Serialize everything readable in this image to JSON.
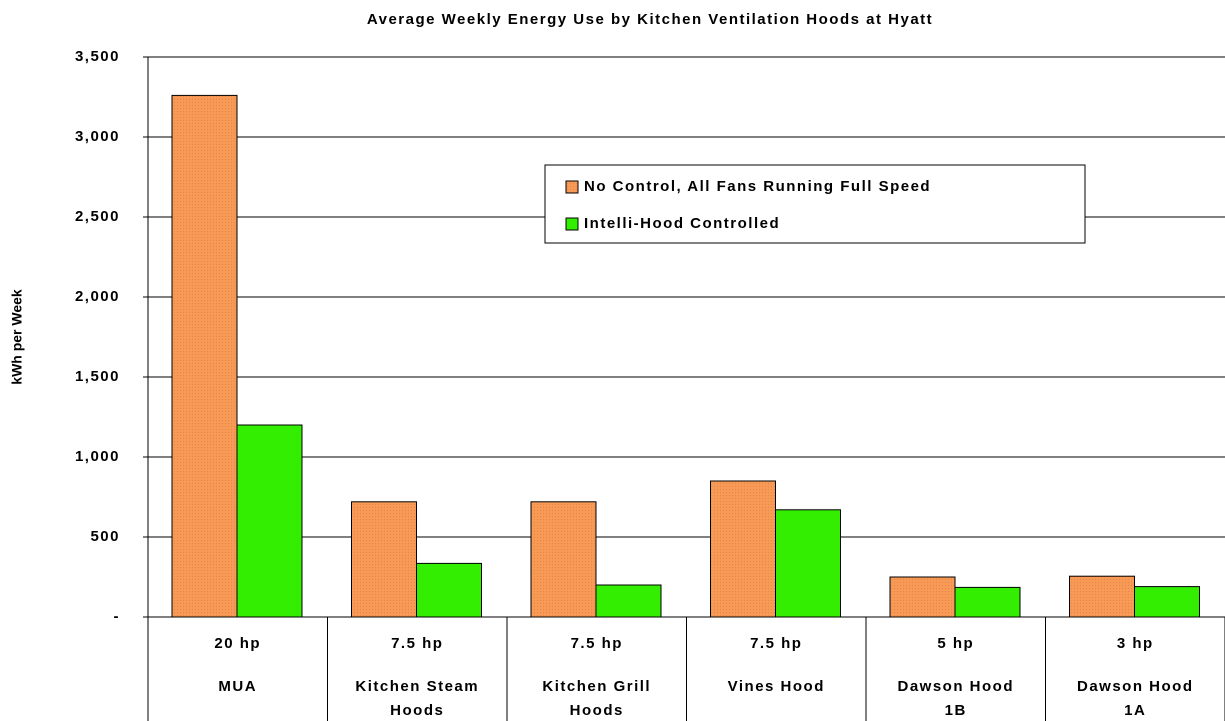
{
  "chart_data": {
    "type": "bar",
    "title": "Average Weekly Energy Use by Kitchen Ventilation Hoods at Hyatt",
    "y_label": "kWh per Week",
    "categories": [
      [
        "20 hp",
        "MUA"
      ],
      [
        "7.5 hp",
        "Kitchen Steam",
        "Hoods"
      ],
      [
        "7.5 hp",
        "Kitchen Grill",
        "Hoods"
      ],
      [
        "7.5 hp",
        "Vines Hood"
      ],
      [
        "5 hp",
        "Dawson Hood",
        "1B"
      ],
      [
        "3 hp",
        "Dawson Hood",
        "1A"
      ]
    ],
    "series": [
      {
        "name": "No Control, All Fans Running Full Speed",
        "color": "#f79a55",
        "values": [
          3260,
          720,
          720,
          850,
          250,
          255
        ]
      },
      {
        "name": "Intelli-Hood Controlled",
        "color": "#33ee00",
        "values": [
          1200,
          335,
          200,
          670,
          185,
          190
        ]
      }
    ],
    "ylim": [
      0,
      3500
    ],
    "yticks": [
      {
        "value": 0,
        "label": "-"
      },
      500,
      {
        "value": 1000,
        "label": "1,000"
      },
      {
        "value": 1500,
        "label": "1,500"
      },
      {
        "value": 2000,
        "label": "2,000"
      },
      {
        "value": 2500,
        "label": "2,500"
      },
      {
        "value": 3000,
        "label": "3,000"
      },
      {
        "value": 3500,
        "label": "3,500"
      }
    ],
    "grid": true,
    "legend": "upper right"
  }
}
